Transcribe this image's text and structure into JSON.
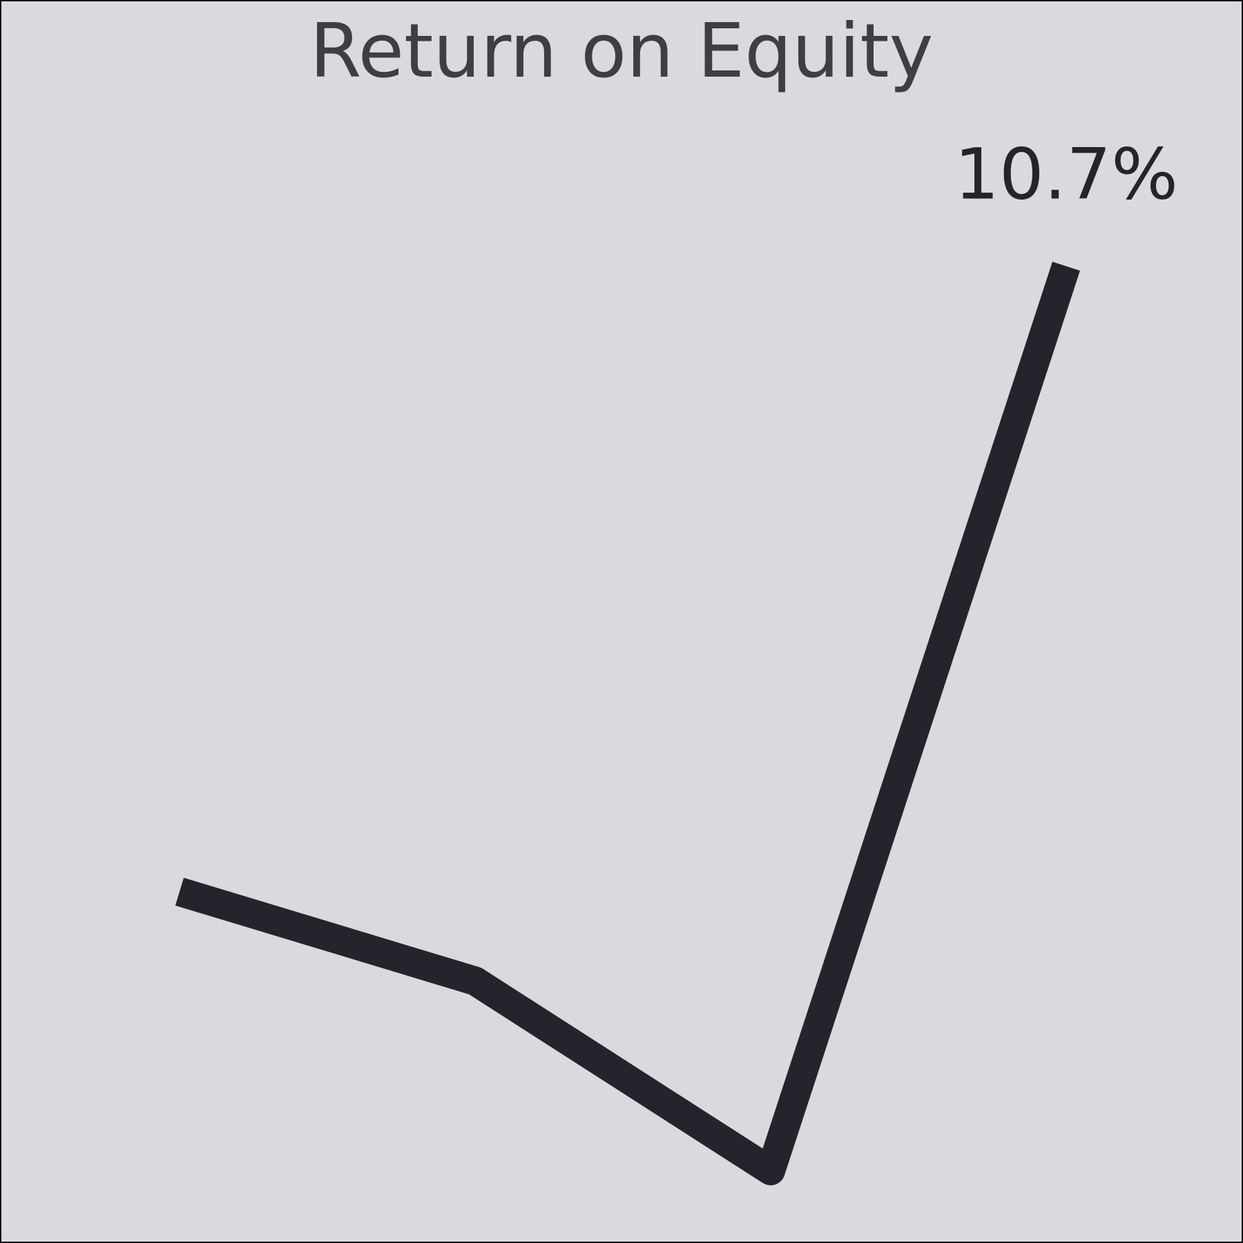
{
  "chart_data": {
    "type": "line",
    "title": "Return on Equity",
    "xlabel": "",
    "ylabel": "",
    "x": [
      1,
      2,
      3,
      4
    ],
    "series": [
      {
        "values": [
          5.1,
          4.3,
          2.6,
          10.7
        ]
      }
    ],
    "end_label": "10.7%",
    "ylim": [
      2.3,
      11.0
    ],
    "grid": false,
    "legend": "none",
    "line_color": "#25232b",
    "background_color": "#dad9de",
    "title_color": "#3f3d45"
  }
}
